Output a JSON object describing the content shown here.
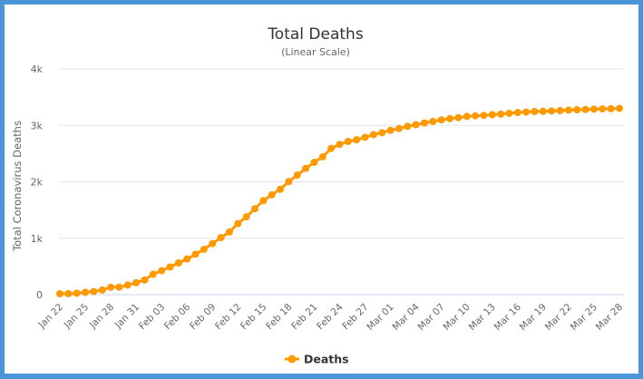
{
  "chart_data": {
    "type": "line",
    "title": "Total Deaths",
    "subtitle": "(Linear Scale)",
    "ylabel": "Total Coronavirus Deaths",
    "xlabel": "",
    "ylim": [
      0,
      4000
    ],
    "yticks": [
      0,
      1000,
      2000,
      3000,
      4000
    ],
    "ytick_labels": [
      "0",
      "1k",
      "2k",
      "3k",
      "4k"
    ],
    "grid": true,
    "legend": "bottom-center",
    "color": "#ff9900",
    "x_start": "2020-01-22",
    "x_tick_labels": [
      "Jan 22",
      "Jan 25",
      "Jan 28",
      "Jan 31",
      "Feb 03",
      "Feb 06",
      "Feb 09",
      "Feb 12",
      "Feb 15",
      "Feb 18",
      "Feb 21",
      "Feb 24",
      "Feb 27",
      "Mar 01",
      "Mar 04",
      "Mar 07",
      "Mar 10",
      "Mar 13",
      "Mar 16",
      "Mar 19",
      "Mar 22",
      "Mar 25",
      "Mar 28"
    ],
    "series": [
      {
        "name": "Deaths",
        "values": [
          17,
          18,
          26,
          42,
          56,
          82,
          131,
          133,
          171,
          213,
          259,
          361,
          425,
          490,
          562,
          632,
          717,
          804,
          904,
          1011,
          1111,
          1259,
          1380,
          1523,
          1665,
          1770,
          1868,
          2004,
          2118,
          2236,
          2345,
          2442,
          2592,
          2663,
          2715,
          2744,
          2788,
          2835,
          2870,
          2912,
          2943,
          2981,
          3012,
          3042,
          3070,
          3097,
          3119,
          3136,
          3158,
          3169,
          3176,
          3189,
          3199,
          3213,
          3226,
          3237,
          3245,
          3248,
          3255,
          3261,
          3270,
          3277,
          3281,
          3287,
          3292,
          3295,
          3300
        ]
      }
    ]
  }
}
